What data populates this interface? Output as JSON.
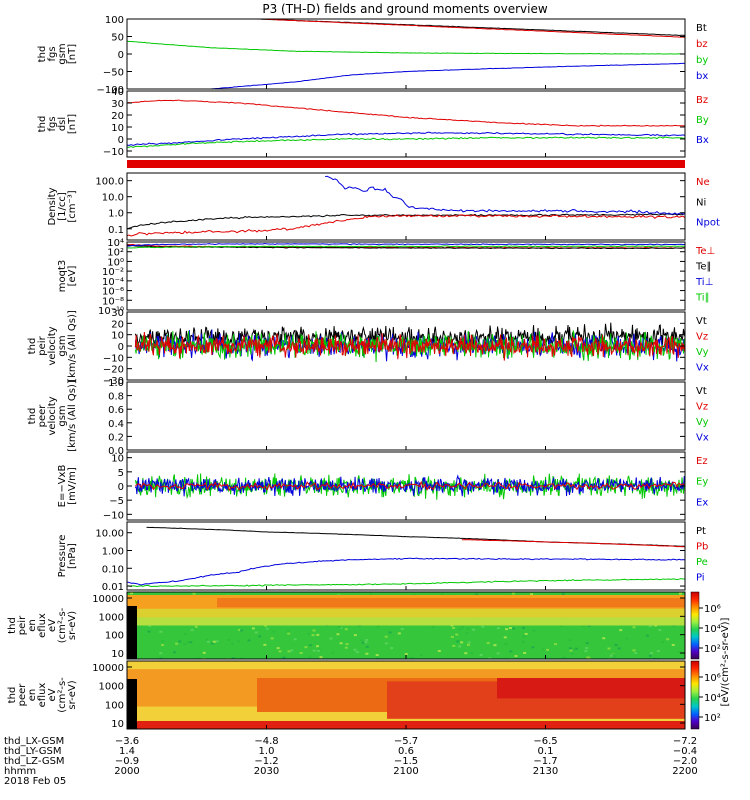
{
  "title": "P3 (TH-D) fields and ground moments overview",
  "colors": {
    "black": "#000000",
    "red": "#e00000",
    "green": "#00c800",
    "blue": "#0000dc",
    "yellow": "#ffff00",
    "spectrogram_base": "#36c63c"
  },
  "chart_data": [
    {
      "id": "fgs-gsm",
      "type": "line",
      "ylabel": [
        "thd",
        "fgs",
        "gsm",
        "[nT]"
      ],
      "ylim": [
        -100,
        100
      ],
      "yticks": [
        {
          "v": 100,
          "label": "100"
        },
        {
          "v": 50,
          "label": "50"
        },
        {
          "v": 0,
          "label": "0"
        },
        {
          "v": -50,
          "label": "−50"
        },
        {
          "v": -100,
          "label": "−100"
        }
      ],
      "legend": [
        {
          "label": "Bt",
          "color": "black"
        },
        {
          "label": "bz",
          "color": "red"
        },
        {
          "label": "by",
          "color": "green"
        },
        {
          "label": "bx",
          "color": "blue"
        }
      ],
      "series": [
        {
          "color": "black",
          "noise": 0.3,
          "x": [
            2047,
            2200
          ],
          "y": [
            100,
            53
          ]
        },
        {
          "color": "red",
          "noise": 0.3,
          "x": [
            2047,
            2200
          ],
          "y": [
            100,
            48
          ]
        },
        {
          "color": "green",
          "noise": 0.3,
          "x": [
            2000,
            2010,
            2030,
            2060,
            2100,
            2150,
            2200
          ],
          "y": [
            37,
            30,
            18,
            8,
            3,
            1,
            0
          ]
        },
        {
          "color": "blue",
          "noise": 0.3,
          "x": [
            2030,
            2060,
            2080,
            2100,
            2130,
            2160,
            2200
          ],
          "y": [
            -100,
            -80,
            -60,
            -50,
            -42,
            -35,
            -27
          ]
        }
      ]
    },
    {
      "id": "fgs-dsl",
      "type": "line",
      "ylabel": [
        "thd",
        "fgs",
        "dsl",
        "[nT]"
      ],
      "ylim": [
        -15,
        40
      ],
      "yticks": [
        {
          "v": 40,
          "label": "40"
        },
        {
          "v": 30,
          "label": "30"
        },
        {
          "v": 20,
          "label": "20"
        },
        {
          "v": 10,
          "label": "10"
        },
        {
          "v": 0,
          "label": "0"
        },
        {
          "v": -10,
          "label": "−10"
        }
      ],
      "legend": [
        {
          "label": "Bz",
          "color": "red"
        },
        {
          "label": "By",
          "color": "green"
        },
        {
          "label": "Bx",
          "color": "blue"
        }
      ],
      "series": [
        {
          "color": "red",
          "noise": 0.2,
          "x": [
            2000,
            2010,
            2020,
            2040,
            2060,
            2080,
            2100,
            2130,
            2160,
            2200
          ],
          "y": [
            30,
            32,
            32,
            30,
            26,
            22,
            18,
            14,
            11,
            11
          ]
        },
        {
          "color": "blue",
          "noise": 0.3,
          "x": [
            2000,
            2020,
            2040,
            2060,
            2080,
            2100,
            2130,
            2160,
            2200
          ],
          "y": [
            -5,
            -3,
            0,
            2,
            4,
            5,
            5,
            4,
            3
          ]
        },
        {
          "color": "green",
          "noise": 0.3,
          "x": [
            2000,
            2020,
            2040,
            2060,
            2080,
            2100,
            2130,
            2160,
            2200
          ],
          "y": [
            -7,
            -4,
            -2,
            -1,
            0,
            0,
            1,
            1,
            1
          ]
        }
      ]
    },
    {
      "id": "mode-bar",
      "type": "bar",
      "segments": [
        {
          "from": 2000,
          "to": 2200,
          "color": "red"
        }
      ]
    },
    {
      "id": "density",
      "type": "line",
      "ylabel": [
        "Density",
        "[1/cc]",
        "[cm⁻³]"
      ],
      "scale": "log",
      "ylim": [
        0.02,
        300
      ],
      "yticks": [
        {
          "v": 100,
          "label": "100.0"
        },
        {
          "v": 10,
          "label": "10.0"
        },
        {
          "v": 1,
          "label": "1.0"
        },
        {
          "v": 0.1,
          "label": "0.1"
        }
      ],
      "legend": [
        {
          "label": "Ne",
          "color": "red"
        },
        {
          "label": "Ni",
          "color": "black"
        },
        {
          "label": "Npot",
          "color": "blue"
        }
      ],
      "series": [
        {
          "color": "black",
          "noise": 0.05,
          "x": [
            2000,
            2005,
            2020,
            2040,
            2060,
            2080,
            2100,
            2150,
            2200
          ],
          "y": [
            0.1,
            0.17,
            0.3,
            0.5,
            0.6,
            0.7,
            0.7,
            0.7,
            0.8
          ]
        },
        {
          "color": "red",
          "noise": 0.08,
          "x": [
            2000,
            2005,
            2020,
            2040,
            2060,
            2070,
            2080,
            2090,
            2100,
            2150,
            2200
          ],
          "y": [
            0.035,
            0.05,
            0.06,
            0.07,
            0.1,
            0.2,
            0.4,
            0.6,
            0.65,
            0.6,
            0.55
          ]
        },
        {
          "color": "blue",
          "noise": 0.08,
          "x": [
            2071,
            2075,
            2078,
            2080,
            2085,
            2088,
            2090,
            2092,
            2095,
            2098,
            2100,
            2102,
            2110,
            2120,
            2140,
            2160,
            2180,
            2200
          ],
          "y": [
            200,
            100,
            30,
            40,
            20,
            40,
            25,
            30,
            10,
            8,
            2.5,
            2,
            1.6,
            1.3,
            1.3,
            1.3,
            1.2,
            0.8
          ]
        }
      ]
    },
    {
      "id": "moms-temperature",
      "type": "line",
      "ylabel": [
        "moqt3",
        "[eV]"
      ],
      "scale": "log",
      "ylim": [
        1e-10,
        10000.0
      ],
      "yticks": [
        {
          "v": 10000.0,
          "label": "10⁴"
        },
        {
          "v": 100.0,
          "label": "10²"
        },
        {
          "v": 1.0,
          "label": "10⁰"
        },
        {
          "v": 0.01,
          "label": "10⁻²"
        },
        {
          "v": 0.0001,
          "label": "10⁻⁴"
        },
        {
          "v": 1e-06,
          "label": "10⁻⁶"
        },
        {
          "v": 1e-08,
          "label": "10⁻⁸"
        },
        {
          "v": 1e-10,
          "label": "10⁻¹⁰"
        }
      ],
      "legend": [
        {
          "label": "Te⊥",
          "color": "red"
        },
        {
          "label": "Te∥",
          "color": "black"
        },
        {
          "label": "Ti⊥",
          "color": "blue"
        },
        {
          "label": "Ti∥",
          "color": "green"
        }
      ],
      "series": [
        {
          "color": "red",
          "noise": 0.08,
          "x": [
            2000,
            2010,
            2040,
            2100,
            2200
          ],
          "y": [
            3000,
            1500,
            900,
            700,
            600
          ]
        },
        {
          "color": "black",
          "noise": 0.08,
          "x": [
            2000,
            2010,
            2040,
            2100,
            2200
          ],
          "y": [
            2000,
            1000,
            800,
            600,
            500
          ]
        },
        {
          "color": "blue",
          "noise": 0.08,
          "x": [
            2000,
            2010,
            2040,
            2100,
            2200
          ],
          "y": [
            1500,
            3000,
            4000,
            3500,
            3000
          ]
        },
        {
          "color": "green",
          "noise": 0.08,
          "x": [
            2000,
            2010,
            2040,
            2100,
            2200
          ],
          "y": [
            600,
            800,
            1200,
            1300,
            1300
          ]
        }
      ]
    },
    {
      "id": "peir-velocity",
      "type": "line",
      "ylabel": [
        "thd",
        "peir",
        "velocity",
        "gsm",
        "[km/s (All Qs)]"
      ],
      "ylim": [
        -30,
        30
      ],
      "yticks": [
        {
          "v": 30,
          "label": "30"
        },
        {
          "v": 20,
          "label": "20"
        },
        {
          "v": 10,
          "label": "10"
        },
        {
          "v": 0,
          "label": "0"
        },
        {
          "v": -10,
          "label": "−10"
        },
        {
          "v": -20,
          "label": "−20"
        },
        {
          "v": -30,
          "label": "−30"
        }
      ],
      "legend": [
        {
          "label": "Vt",
          "color": "black"
        },
        {
          "label": "Vz",
          "color": "red"
        },
        {
          "label": "Vy",
          "color": "green"
        },
        {
          "label": "Vx",
          "color": "blue"
        }
      ],
      "series": [
        {
          "color": "black",
          "noise": 4.5,
          "x": [
            2003,
            2200
          ],
          "y": [
            8,
            8
          ]
        },
        {
          "color": "blue",
          "noise": 5,
          "x": [
            2003,
            2200
          ],
          "y": [
            0,
            0
          ]
        },
        {
          "color": "green",
          "noise": 5.5,
          "x": [
            2003,
            2200
          ],
          "y": [
            0,
            0
          ]
        },
        {
          "color": "red",
          "noise": 4.5,
          "x": [
            2003,
            2200
          ],
          "y": [
            0,
            0
          ]
        }
      ]
    },
    {
      "id": "peer-velocity",
      "type": "line",
      "ylabel": [
        "thd",
        "peer",
        "velocity",
        "gsm",
        "[km/s (All Qs)]"
      ],
      "ylim": [
        0,
        1
      ],
      "yticks": [
        {
          "v": 1.0,
          "label": "1.0"
        },
        {
          "v": 0.8,
          "label": "0.8"
        },
        {
          "v": 0.6,
          "label": "0.6"
        },
        {
          "v": 0.4,
          "label": "0.4"
        },
        {
          "v": 0.2,
          "label": "0.2"
        },
        {
          "v": 0.0,
          "label": "0.0"
        }
      ],
      "legend": [
        {
          "label": "Vt",
          "color": "black"
        },
        {
          "label": "Vz",
          "color": "red"
        },
        {
          "label": "Vy",
          "color": "green"
        },
        {
          "label": "Vx",
          "color": "blue"
        }
      ],
      "series": []
    },
    {
      "id": "efield",
      "type": "line",
      "ylabel": [
        "E=−VxB",
        "[mV/m]"
      ],
      "ylim": [
        -12,
        12
      ],
      "yticks": [
        {
          "v": 10,
          "label": "10"
        },
        {
          "v": 5,
          "label": "5"
        },
        {
          "v": 0,
          "label": "0"
        },
        {
          "v": -5,
          "label": "−5"
        },
        {
          "v": -10,
          "label": "−10"
        }
      ],
      "legend": [
        {
          "label": "Ez",
          "color": "red"
        },
        {
          "label": "Ey",
          "color": "green"
        },
        {
          "label": "Ex",
          "color": "blue"
        }
      ],
      "series": [
        {
          "color": "green",
          "noise": 1.8,
          "x": [
            2003,
            2060,
            2120,
            2200
          ],
          "y": [
            0,
            0,
            0,
            0
          ]
        },
        {
          "color": "blue",
          "noise": 1.4,
          "x": [
            2003,
            2060,
            2120,
            2200
          ],
          "y": [
            0,
            0,
            0,
            0
          ]
        },
        {
          "color": "red",
          "noise": 0.6,
          "x": [
            2003,
            2060,
            2120,
            2200
          ],
          "y": [
            0,
            0,
            0,
            0
          ]
        }
      ]
    },
    {
      "id": "pressure",
      "type": "line",
      "ylabel": [
        "Pressure",
        "[nPa]"
      ],
      "scale": "log",
      "ylim": [
        0.006,
        40
      ],
      "yticks": [
        {
          "v": 10,
          "label": "10.00"
        },
        {
          "v": 1,
          "label": "1.00"
        },
        {
          "v": 0.1,
          "label": "0.10"
        },
        {
          "v": 0.01,
          "label": "0.01"
        }
      ],
      "legend": [
        {
          "label": "Pt",
          "color": "black"
        },
        {
          "label": "Pb",
          "color": "red"
        },
        {
          "label": "Pe",
          "color": "green"
        },
        {
          "label": "Pi",
          "color": "blue"
        }
      ],
      "series": [
        {
          "color": "black",
          "noise": 0.01,
          "x": [
            2007,
            2050,
            2100,
            2150,
            2200
          ],
          "y": [
            20,
            11,
            6,
            3,
            1.7
          ]
        },
        {
          "color": "red",
          "noise": 0.01,
          "x": [
            2120,
            2150,
            2200
          ],
          "y": [
            4.1,
            3,
            1.6
          ]
        },
        {
          "color": "blue",
          "noise": 0.03,
          "x": [
            2000,
            2005,
            2020,
            2040,
            2060,
            2080,
            2100,
            2150,
            2200
          ],
          "y": [
            0.016,
            0.012,
            0.02,
            0.06,
            0.2,
            0.3,
            0.35,
            0.33,
            0.3
          ]
        },
        {
          "color": "green",
          "noise": 0.03,
          "x": [
            2000,
            2020,
            2050,
            2100,
            2150,
            2200
          ],
          "y": [
            0.01,
            0.01,
            0.011,
            0.013,
            0.02,
            0.025
          ]
        }
      ]
    },
    {
      "id": "peir-eflux",
      "type": "heatmap",
      "ylabel": [
        "thd",
        "peir",
        "en",
        "eflux",
        "eV",
        "(cm²-s-",
        "sr-eV)"
      ],
      "yticks": [
        {
          "label": "10000"
        },
        {
          "label": "1000"
        },
        {
          "label": "100"
        },
        {
          "label": "10"
        }
      ]
    },
    {
      "id": "peer-eflux",
      "type": "heatmap",
      "ylabel": [
        "thd",
        "peer",
        "en",
        "eflux",
        "eV",
        "(cm²-s-",
        "sr-eV)"
      ],
      "yticks": [
        {
          "label": "10000"
        },
        {
          "label": "1000"
        },
        {
          "label": "100"
        },
        {
          "label": "10"
        }
      ]
    }
  ],
  "colorbar": {
    "ticks": [
      "10⁶",
      "10⁴",
      "10²"
    ],
    "label": "[eV/(cm²-s-sr-eV)]"
  },
  "colorbar_top_ticks": [
    "10⁶",
    "10⁴",
    "10²"
  ],
  "xaxis": {
    "range": [
      2000,
      2200
    ],
    "rows": [
      {
        "label": "thd_LX-GSM",
        "values": [
          "−3.6",
          "−4.8",
          "−5.7",
          "−6.5",
          "−7.2"
        ]
      },
      {
        "label": "thd_LY-GSM",
        "values": [
          "1.4",
          "1.0",
          "0.6",
          "0.1",
          "−0.4"
        ]
      },
      {
        "label": "thd_LZ-GSM",
        "values": [
          "−0.9",
          "−1.2",
          "−1.5",
          "−1.7",
          "−2.0"
        ]
      },
      {
        "label": "hhmm",
        "values": [
          "2000",
          "2030",
          "2100",
          "2130",
          "2200"
        ]
      }
    ],
    "date": "2018 Feb 05"
  }
}
